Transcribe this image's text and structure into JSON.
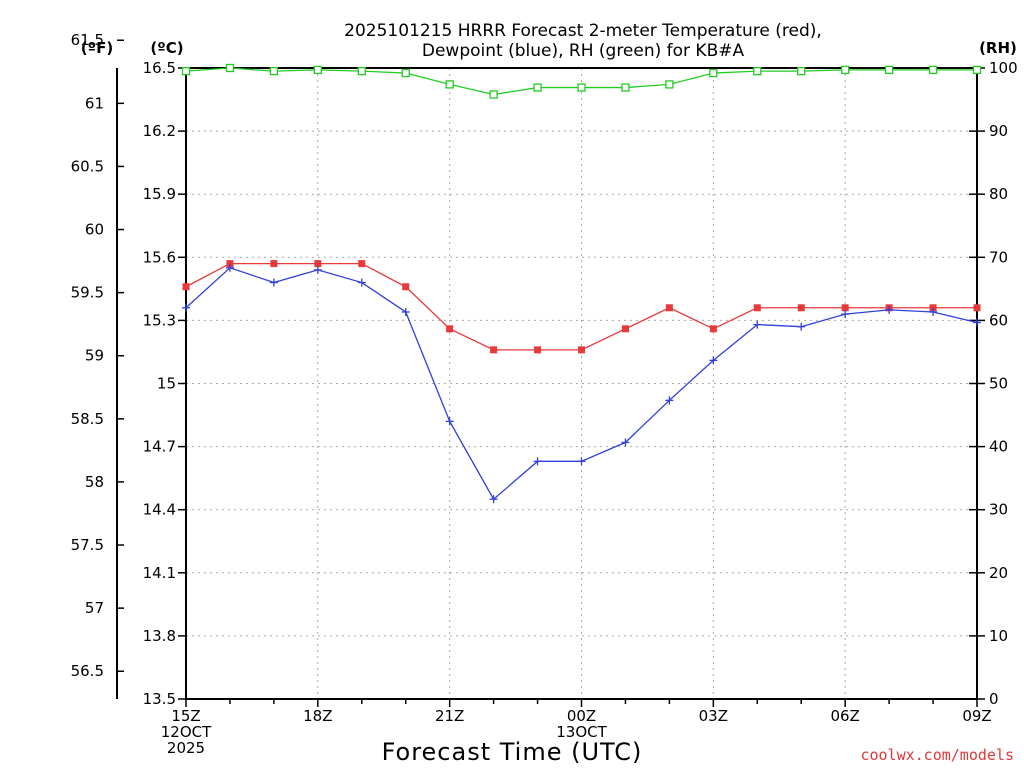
{
  "chart_data": {
    "type": "line",
    "title_line1": "2025101215 HRRR Forecast 2-meter Temperature (red),",
    "title_line2": "Dewpoint (blue), RH (green) for KB#A",
    "xlabel": "Forecast Time (UTC)",
    "credit": "coolwx.com/models",
    "units": {
      "f": "(ºF)",
      "c": "(ºC)",
      "rh": "(RH)"
    },
    "x_ticks": [
      {
        "hour": 0,
        "lines": [
          "15Z",
          "12OCT",
          "2025"
        ]
      },
      {
        "hour": 3,
        "lines": [
          "18Z"
        ]
      },
      {
        "hour": 6,
        "lines": [
          "21Z"
        ]
      },
      {
        "hour": 9,
        "lines": [
          "00Z",
          "13OCT"
        ]
      },
      {
        "hour": 12,
        "lines": [
          "03Z"
        ]
      },
      {
        "hour": 15,
        "lines": [
          "06Z"
        ]
      },
      {
        "hour": 18,
        "lines": [
          "09Z"
        ]
      }
    ],
    "x_range": [
      0,
      18
    ],
    "y_c_range": [
      13.5,
      16.5
    ],
    "y_c_ticks": [
      "13.5",
      "13.8",
      "14.1",
      "14.4",
      "14.7",
      "15",
      "15.3",
      "15.6",
      "15.9",
      "16.2",
      "16.5"
    ],
    "y_f_ticks": [
      "56.5",
      "57",
      "57.5",
      "58",
      "58.5",
      "59",
      "59.5",
      "60",
      "60.5",
      "61",
      "61.5"
    ],
    "y_rh_range": [
      0,
      100
    ],
    "y_rh_ticks": [
      "0",
      "10",
      "20",
      "30",
      "40",
      "50",
      "60",
      "70",
      "80",
      "90",
      "100"
    ],
    "grid": true,
    "series": [
      {
        "name": "Temperature",
        "color": "#e8393b",
        "marker": "filled-square",
        "axis": "c",
        "values": [
          15.46,
          15.57,
          15.57,
          15.57,
          15.57,
          15.46,
          15.26,
          15.16,
          15.16,
          15.16,
          15.26,
          15.36,
          15.26,
          15.36,
          15.36,
          15.36,
          15.36,
          15.36,
          15.36
        ]
      },
      {
        "name": "Dewpoint",
        "color": "#3040dd",
        "marker": "plus",
        "axis": "c",
        "values": [
          15.36,
          15.55,
          15.48,
          15.54,
          15.48,
          15.34,
          14.82,
          14.45,
          14.63,
          14.63,
          14.72,
          14.92,
          15.11,
          15.28,
          15.27,
          15.33,
          15.35,
          15.34,
          15.29
        ]
      },
      {
        "name": "RH",
        "color": "#22cc22",
        "marker": "open-square",
        "axis": "rh",
        "values": [
          99.5,
          100,
          99.5,
          99.7,
          99.5,
          99.2,
          97.4,
          95.8,
          96.9,
          96.9,
          96.9,
          97.4,
          99.2,
          99.5,
          99.5,
          99.7,
          99.7,
          99.7,
          99.7
        ]
      }
    ]
  }
}
